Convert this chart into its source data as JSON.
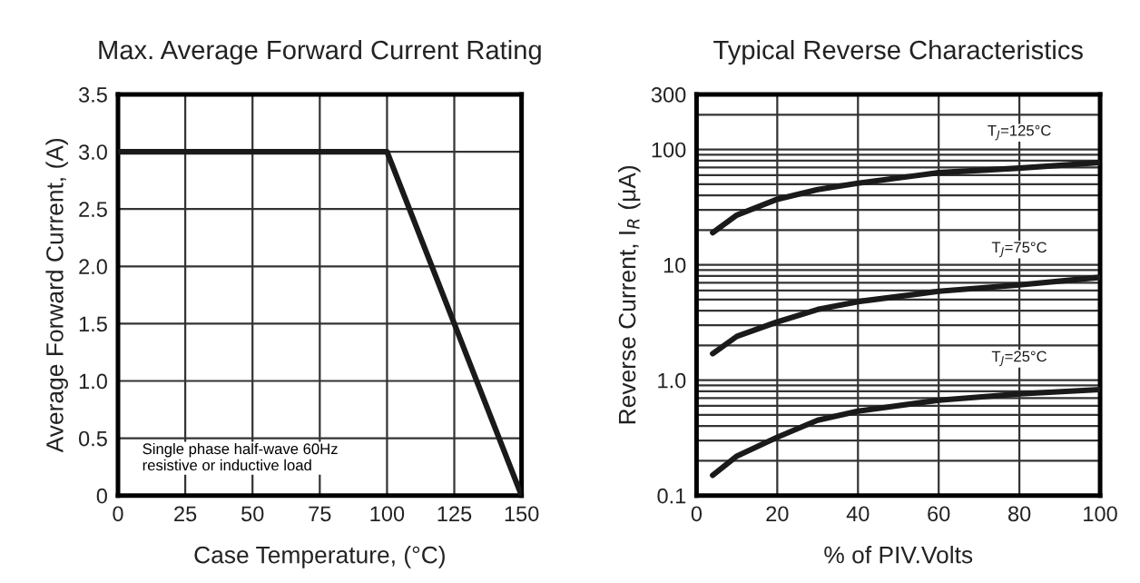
{
  "chart_data": [
    {
      "type": "line",
      "title": "Max. Average Forward Current Rating",
      "xlabel": "Case Temperature, (°C)",
      "ylabel": "Average Forward Current, (A)",
      "x": [
        0,
        100,
        150
      ],
      "series": [
        {
          "color": "#1a1a1a",
          "values": [
            3.0,
            3.0,
            0
          ]
        }
      ],
      "xlim": [
        0,
        150
      ],
      "xticks": [
        0,
        25,
        50,
        75,
        100,
        125,
        150
      ],
      "ylim": [
        0,
        3.5
      ],
      "yticks": [
        0,
        0.5,
        {
          "value": 1.0,
          "label": "1.0"
        },
        1.5,
        {
          "value": 2.0,
          "label": "2.0"
        },
        2.5,
        {
          "value": 3.0,
          "label": "3.0"
        },
        3.5
      ],
      "grid": true,
      "marker": "none",
      "line_style": "solid",
      "annotations": [
        "Single phase half-wave 60Hz\nresistive or inductive load"
      ]
    },
    {
      "type": "line",
      "title": "Typical Reverse Characteristics",
      "xlabel": "% of PIV.Volts",
      "ylabel": "Reverse Current, I$_{R}$ (μA)",
      "x": [
        4,
        10,
        20,
        30,
        40,
        60,
        80,
        100
      ],
      "series": [
        {
          "name": "T$_{J}$=125°C",
          "color": "#1a1a1a",
          "values": [
            19,
            27,
            37,
            45,
            51,
            63,
            69,
            77
          ]
        },
        {
          "name": "T$_{J}$=75°C",
          "color": "#1a1a1a",
          "values": [
            1.7,
            2.4,
            3.2,
            4.1,
            4.8,
            5.9,
            6.7,
            7.8
          ]
        },
        {
          "name": "T$_{J}$=25°C",
          "color": "#1a1a1a",
          "values": [
            0.15,
            0.22,
            0.32,
            0.45,
            0.54,
            0.67,
            0.76,
            0.83
          ]
        }
      ],
      "log": "y",
      "xlim": [
        0,
        100
      ],
      "xticks": [
        0,
        20,
        40,
        60,
        80,
        100
      ],
      "ylim": [
        0.1,
        300
      ],
      "yticks": [
        0.1,
        {
          "value": 0.2,
          "label": null
        },
        {
          "value": 0.3,
          "label": null
        },
        {
          "value": 0.4,
          "label": null
        },
        {
          "value": 0.5,
          "label": null
        },
        {
          "value": 0.6,
          "label": null
        },
        {
          "value": 0.7,
          "label": null
        },
        {
          "value": 0.8,
          "label": null
        },
        {
          "value": 0.9,
          "label": null
        },
        {
          "value": 1.0,
          "label": "1.0"
        },
        {
          "value": 2,
          "label": null
        },
        {
          "value": 3,
          "label": null
        },
        {
          "value": 4,
          "label": null
        },
        {
          "value": 5,
          "label": null
        },
        {
          "value": 6,
          "label": null
        },
        {
          "value": 7,
          "label": null
        },
        {
          "value": 8,
          "label": null
        },
        {
          "value": 9,
          "label": null
        },
        10,
        {
          "value": 20,
          "label": null
        },
        {
          "value": 30,
          "label": null
        },
        {
          "value": 40,
          "label": null
        },
        {
          "value": 50,
          "label": null
        },
        {
          "value": 60,
          "label": null
        },
        {
          "value": 70,
          "label": null
        },
        {
          "value": 80,
          "label": null
        },
        {
          "value": 90,
          "label": null
        },
        100,
        {
          "value": 200,
          "label": null
        },
        300
      ],
      "grid": true,
      "marker": "none",
      "line_style": "solid"
    }
  ]
}
